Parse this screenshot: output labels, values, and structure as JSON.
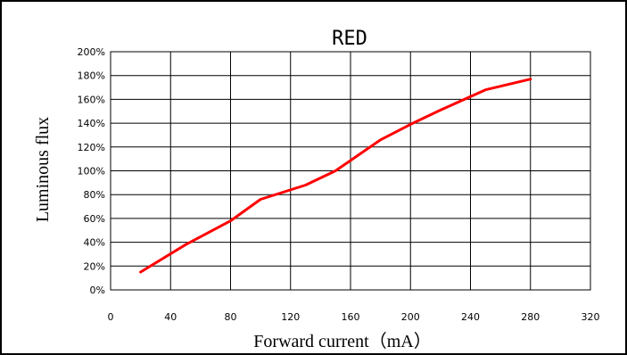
{
  "chart_data": {
    "type": "line",
    "title": "RED",
    "xlabel": "Forward current（mA）",
    "ylabel": "Luminous flux",
    "xlim": [
      0,
      320
    ],
    "ylim": [
      0,
      200
    ],
    "grid": true,
    "x_ticks": [
      0,
      40,
      80,
      120,
      160,
      200,
      240,
      280,
      320
    ],
    "y_ticks": [
      0,
      20,
      40,
      60,
      80,
      100,
      120,
      140,
      160,
      180,
      200
    ],
    "y_tick_labels": [
      "0%",
      "20%",
      "40%",
      "60%",
      "80%",
      "100%",
      "120%",
      "140%",
      "160%",
      "180%",
      "200%"
    ],
    "series": [
      {
        "color": "#ff0000",
        "x": [
          20,
          50,
          80,
          100,
          130,
          150,
          165,
          180,
          200,
          220,
          250,
          280
        ],
        "y": [
          15,
          38,
          58,
          76,
          88,
          100,
          113,
          126,
          139,
          151,
          168,
          177
        ]
      }
    ]
  }
}
